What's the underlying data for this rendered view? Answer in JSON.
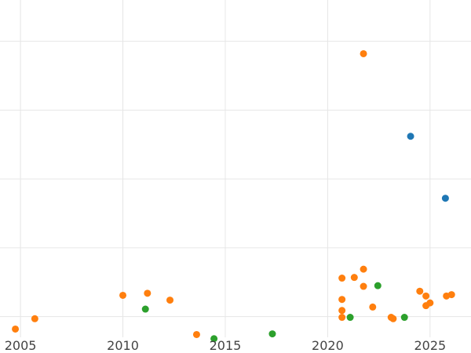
{
  "chart_data": {
    "type": "scatter",
    "title": "",
    "xlabel": "",
    "ylabel": "",
    "xlim": [
      2004.0,
      2027.0
    ],
    "ylim": [
      -0.3,
      4.6
    ],
    "grid": true,
    "legend": "none",
    "x_ticks": [
      2005,
      2010,
      2015,
      2020,
      2025
    ],
    "x_tick_labels": [
      "2005",
      "2010",
      "2015",
      "2020",
      "2025"
    ],
    "y_ticks": [
      0,
      1,
      2,
      3,
      4
    ],
    "series": [
      {
        "color": "#ff7f0e",
        "points": [
          {
            "x": 2004.75,
            "y": -0.18
          },
          {
            "x": 2005.7,
            "y": -0.03
          },
          {
            "x": 2010.0,
            "y": 0.31
          },
          {
            "x": 2011.2,
            "y": 0.34
          },
          {
            "x": 2012.3,
            "y": 0.24
          },
          {
            "x": 2013.6,
            "y": -0.26
          },
          {
            "x": 2020.7,
            "y": 0.09
          },
          {
            "x": 2020.7,
            "y": -0.01
          },
          {
            "x": 2020.7,
            "y": 0.25
          },
          {
            "x": 2020.7,
            "y": 0.56
          },
          {
            "x": 2021.3,
            "y": 0.57
          },
          {
            "x": 2021.75,
            "y": 3.82
          },
          {
            "x": 2021.75,
            "y": 0.69
          },
          {
            "x": 2021.75,
            "y": 0.44
          },
          {
            "x": 2022.2,
            "y": 0.14
          },
          {
            "x": 2023.1,
            "y": -0.01
          },
          {
            "x": 2023.2,
            "y": -0.03
          },
          {
            "x": 2024.5,
            "y": 0.37
          },
          {
            "x": 2024.8,
            "y": 0.16
          },
          {
            "x": 2024.8,
            "y": 0.3
          },
          {
            "x": 2025.0,
            "y": 0.2
          },
          {
            "x": 2025.8,
            "y": 0.3
          },
          {
            "x": 2026.05,
            "y": 0.32
          }
        ]
      },
      {
        "color": "#2ca02c",
        "points": [
          {
            "x": 2011.1,
            "y": 0.11
          },
          {
            "x": 2014.45,
            "y": -0.32
          },
          {
            "x": 2017.3,
            "y": -0.25
          },
          {
            "x": 2021.1,
            "y": -0.01
          },
          {
            "x": 2022.45,
            "y": 0.45
          },
          {
            "x": 2023.75,
            "y": -0.01
          }
        ]
      },
      {
        "color": "#1f77b4",
        "points": [
          {
            "x": 2024.05,
            "y": 2.62
          },
          {
            "x": 2025.75,
            "y": 1.72
          }
        ]
      }
    ]
  }
}
